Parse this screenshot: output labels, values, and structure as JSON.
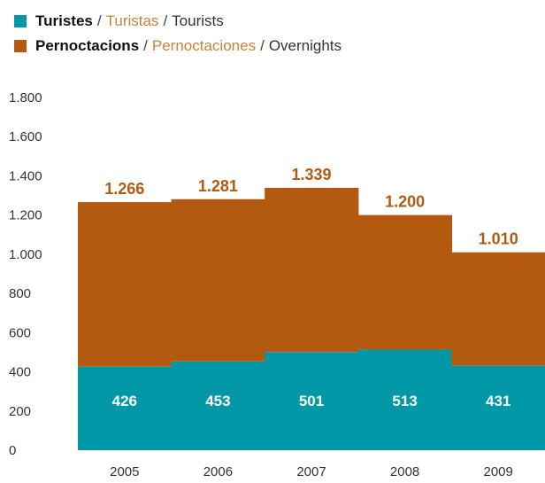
{
  "legend": [
    {
      "primary": "Turistes",
      "secondary": "Turistas",
      "tertiary": "Tourists",
      "color": "#0097A7"
    },
    {
      "primary": "Pernoctacions",
      "secondary": "Pernoctaciones",
      "tertiary": "Overnights",
      "color": "#B35A10"
    }
  ],
  "legend_sep": "/",
  "colors": {
    "tourists": "#0097A7",
    "overnights": "#B35A10",
    "secondary_text": "#C8823A",
    "axis_text": "#333333"
  },
  "chart_data": {
    "type": "bar",
    "stacked": true,
    "categories": [
      "2005",
      "2006",
      "2007",
      "2008",
      "2009"
    ],
    "series": [
      {
        "name": "Turistes / Turistas / Tourists",
        "values": [
          426,
          453,
          501,
          513,
          431
        ],
        "labels": [
          "426",
          "453",
          "501",
          "513",
          "431"
        ]
      },
      {
        "name": "Pernoctacions / Pernoctaciones / Overnights",
        "totals": [
          1266,
          1281,
          1339,
          1200,
          1010
        ],
        "labels": [
          "1.266",
          "1.281",
          "1.339",
          "1.200",
          "1.010"
        ]
      }
    ],
    "ylim": [
      0,
      1800
    ],
    "yticks": [
      0,
      200,
      400,
      600,
      800,
      1000,
      1200,
      1400,
      1600,
      1800
    ],
    "ytick_labels": [
      "0",
      "200",
      "400",
      "600",
      "800",
      "1.000",
      "1.200",
      "1.400",
      "1.600",
      "1.800"
    ],
    "grid": false,
    "legend_position": "top-left"
  }
}
